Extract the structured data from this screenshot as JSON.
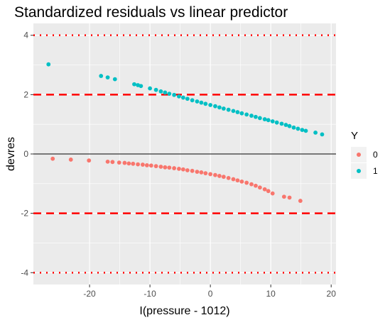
{
  "chart_data": {
    "type": "scatter",
    "title": "Standardized residuals vs linear predictor",
    "xlabel": "I(pressure - 1012)",
    "ylabel": "devres",
    "xlim": [
      -29.3,
      20.8
    ],
    "ylim": [
      -4.4,
      4.4
    ],
    "x_ticks": [
      -20,
      -10,
      0,
      10,
      20
    ],
    "x_tick_labels": [
      "-20",
      "-10",
      "0",
      "10",
      "20"
    ],
    "y_ticks": [
      -4,
      -2,
      0,
      2,
      4
    ],
    "y_tick_labels": [
      "-4",
      "-2",
      "0",
      "2",
      "4"
    ],
    "grid": true,
    "panel_background": "#ebebeb",
    "legend": {
      "title": "Y",
      "position": "right",
      "entries": [
        {
          "label": "0",
          "color": "#f8766d"
        },
        {
          "label": "1",
          "color": "#00bfc4"
        }
      ]
    },
    "reference_lines": [
      {
        "y": 0,
        "style": "solid",
        "color": "#000000"
      },
      {
        "y": 2,
        "style": "dashed",
        "color": "#ff0000"
      },
      {
        "y": -2,
        "style": "dashed",
        "color": "#ff0000"
      },
      {
        "y": 4,
        "style": "dotted",
        "color": "#ff0000"
      },
      {
        "y": -4,
        "style": "dotted",
        "color": "#ff0000"
      }
    ],
    "series": [
      {
        "name": "0",
        "color": "#f8766d",
        "points": [
          [
            -26.1,
            -0.16
          ],
          [
            -23.1,
            -0.19
          ],
          [
            -20.1,
            -0.22
          ],
          [
            -17.0,
            -0.26
          ],
          [
            -16.2,
            -0.27
          ],
          [
            -15.1,
            -0.29
          ],
          [
            -14.2,
            -0.3
          ],
          [
            -13.5,
            -0.32
          ],
          [
            -12.8,
            -0.33
          ],
          [
            -12.0,
            -0.35
          ],
          [
            -11.2,
            -0.36
          ],
          [
            -10.5,
            -0.38
          ],
          [
            -9.8,
            -0.39
          ],
          [
            -9.0,
            -0.41
          ],
          [
            -8.2,
            -0.43
          ],
          [
            -7.5,
            -0.45
          ],
          [
            -6.8,
            -0.46
          ],
          [
            -6.0,
            -0.48
          ],
          [
            -5.2,
            -0.5
          ],
          [
            -4.5,
            -0.52
          ],
          [
            -3.8,
            -0.55
          ],
          [
            -3.0,
            -0.57
          ],
          [
            -2.2,
            -0.6
          ],
          [
            -1.5,
            -0.62
          ],
          [
            -0.8,
            -0.65
          ],
          [
            0.0,
            -0.68
          ],
          [
            0.8,
            -0.71
          ],
          [
            1.5,
            -0.74
          ],
          [
            2.2,
            -0.77
          ],
          [
            3.0,
            -0.81
          ],
          [
            3.8,
            -0.85
          ],
          [
            4.5,
            -0.89
          ],
          [
            5.2,
            -0.93
          ],
          [
            6.0,
            -0.97
          ],
          [
            6.8,
            -1.02
          ],
          [
            7.5,
            -1.07
          ],
          [
            8.2,
            -1.13
          ],
          [
            9.0,
            -1.19
          ],
          [
            9.6,
            -1.25
          ],
          [
            10.3,
            -1.33
          ],
          [
            12.2,
            -1.44
          ],
          [
            13.1,
            -1.47
          ],
          [
            14.9,
            -1.58
          ]
        ]
      },
      {
        "name": "1",
        "color": "#00bfc4",
        "points": [
          [
            -26.8,
            3.02
          ],
          [
            -18.1,
            2.63
          ],
          [
            -17.0,
            2.58
          ],
          [
            -15.8,
            2.52
          ],
          [
            -12.6,
            2.35
          ],
          [
            -12.0,
            2.32
          ],
          [
            -11.5,
            2.29
          ],
          [
            -10.0,
            2.21
          ],
          [
            -9.0,
            2.16
          ],
          [
            -8.2,
            2.11
          ],
          [
            -7.5,
            2.07
          ],
          [
            -6.8,
            2.03
          ],
          [
            -6.0,
            1.99
          ],
          [
            -5.2,
            1.94
          ],
          [
            -4.5,
            1.9
          ],
          [
            -3.8,
            1.86
          ],
          [
            -3.0,
            1.81
          ],
          [
            -2.2,
            1.77
          ],
          [
            -1.5,
            1.73
          ],
          [
            -0.8,
            1.69
          ],
          [
            0.0,
            1.65
          ],
          [
            0.8,
            1.61
          ],
          [
            1.5,
            1.57
          ],
          [
            2.2,
            1.53
          ],
          [
            3.0,
            1.49
          ],
          [
            3.8,
            1.45
          ],
          [
            4.5,
            1.41
          ],
          [
            5.2,
            1.37
          ],
          [
            6.0,
            1.33
          ],
          [
            6.8,
            1.29
          ],
          [
            7.5,
            1.25
          ],
          [
            8.2,
            1.21
          ],
          [
            9.0,
            1.17
          ],
          [
            9.6,
            1.14
          ],
          [
            10.3,
            1.1
          ],
          [
            11.0,
            1.06
          ],
          [
            11.8,
            1.02
          ],
          [
            12.5,
            0.98
          ],
          [
            13.1,
            0.94
          ],
          [
            13.8,
            0.89
          ],
          [
            14.5,
            0.85
          ],
          [
            15.2,
            0.81
          ],
          [
            15.8,
            0.78
          ],
          [
            17.4,
            0.72
          ],
          [
            18.5,
            0.66
          ]
        ]
      }
    ]
  }
}
